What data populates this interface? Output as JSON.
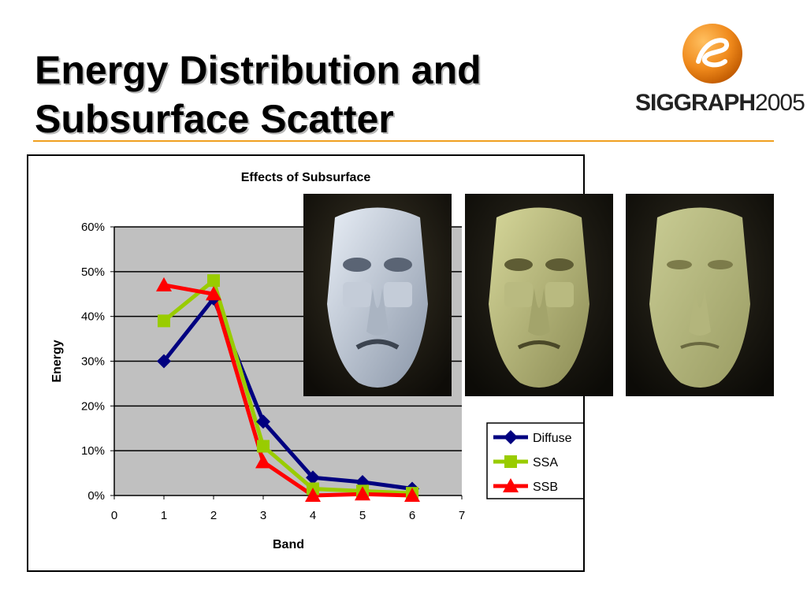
{
  "slide": {
    "title_line1": "Energy Distribution and",
    "title_line2": "Subsurface Scatter"
  },
  "logo": {
    "brand_bold": "SIGGRAPH",
    "brand_light": "2005",
    "accent_color": "#f08a1c"
  },
  "colors": {
    "rule": "#f0a020",
    "plot_bg": "#c0c0c0"
  },
  "chart_data": {
    "type": "line",
    "title": "Effects of Subsurface",
    "xlabel": "Band",
    "ylabel": "Energy",
    "xlim": [
      0,
      7
    ],
    "ylim": [
      0,
      0.6
    ],
    "x_ticks": [
      "0",
      "1",
      "2",
      "3",
      "4",
      "5",
      "6",
      "7"
    ],
    "y_ticks": [
      "0%",
      "10%",
      "20%",
      "30%",
      "40%",
      "50%",
      "60%"
    ],
    "x": [
      1,
      2,
      3,
      4,
      5,
      6
    ],
    "grid": true,
    "legend_position": "right",
    "series": [
      {
        "name": "Diffuse",
        "color": "#000080",
        "marker": "diamond",
        "values": [
          0.3,
          0.44,
          0.165,
          0.04,
          0.03,
          0.015
        ]
      },
      {
        "name": "SSA",
        "color": "#99cc00",
        "marker": "square",
        "values": [
          0.39,
          0.48,
          0.11,
          0.015,
          0.01,
          0.005
        ]
      },
      {
        "name": "SSB",
        "color": "#ff0000",
        "marker": "triangle",
        "values": [
          0.47,
          0.45,
          0.075,
          0.0,
          0.003,
          0.0
        ]
      }
    ]
  },
  "renders": [
    {
      "name": "render-diffuse",
      "tone": "blue-gray"
    },
    {
      "name": "render-ssa",
      "tone": "olive"
    },
    {
      "name": "render-ssb",
      "tone": "pale-olive"
    }
  ]
}
